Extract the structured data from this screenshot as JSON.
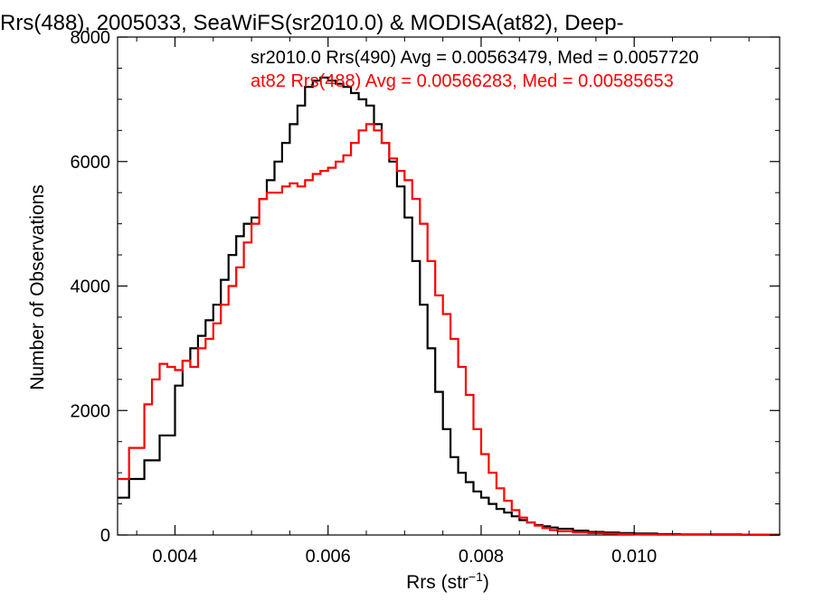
{
  "chart_data": {
    "type": "line",
    "title": "Rrs(488), 2005033, SeaWiFS(sr2010.0) & MODISA(at82), Deep-",
    "xlabel": "Rrs (str",
    "xlabel_sup": "−1",
    "xlabel_suffix": ")",
    "ylabel": "Number of Observations",
    "xlim": [
      0.00325,
      0.0119
    ],
    "ylim": [
      0,
      8000
    ],
    "xticks": [
      0.004,
      0.006,
      0.008,
      0.01
    ],
    "xtick_labels": [
      "0.004",
      "0.006",
      "0.008",
      "0.010"
    ],
    "yticks": [
      0,
      2000,
      4000,
      6000,
      8000
    ],
    "ytick_labels": [
      "0",
      "2000",
      "4000",
      "6000",
      "8000"
    ],
    "grid": false,
    "legend_position": "top-right",
    "series": [
      {
        "name": "sr2010.0 Rrs(490) Avg = 0.00563479, Med = 0.0057720",
        "color": "#000000",
        "x": [
          0.00325,
          0.0034,
          0.0036,
          0.0038,
          0.004,
          0.0041,
          0.0042,
          0.0043,
          0.0044,
          0.0045,
          0.0046,
          0.0047,
          0.0048,
          0.0049,
          0.005,
          0.0051,
          0.0052,
          0.0053,
          0.0054,
          0.0055,
          0.0056,
          0.0057,
          0.0058,
          0.0059,
          0.006,
          0.0061,
          0.0062,
          0.0063,
          0.0064,
          0.0065,
          0.0066,
          0.0067,
          0.0068,
          0.0069,
          0.007,
          0.0071,
          0.0072,
          0.0073,
          0.0074,
          0.0075,
          0.0076,
          0.0077,
          0.0078,
          0.0079,
          0.008,
          0.0081,
          0.0082,
          0.0083,
          0.0084,
          0.0085,
          0.0086,
          0.0087,
          0.0088,
          0.0089,
          0.009,
          0.0092,
          0.0094,
          0.0096,
          0.0098,
          0.01,
          0.0103,
          0.0106,
          0.011,
          0.0114,
          0.0119
        ],
        "values": [
          600,
          900,
          1200,
          1600,
          2400,
          2800,
          3000,
          3200,
          3450,
          3700,
          4100,
          4500,
          4800,
          5000,
          5100,
          5400,
          5700,
          6000,
          6300,
          6600,
          6900,
          7200,
          7300,
          7350,
          7300,
          7250,
          7200,
          7100,
          7000,
          6900,
          6600,
          6300,
          6000,
          5600,
          5100,
          4400,
          3700,
          3000,
          2300,
          1700,
          1250,
          1000,
          850,
          700,
          600,
          500,
          420,
          360,
          300,
          240,
          200,
          160,
          140,
          120,
          100,
          70,
          50,
          40,
          30,
          25,
          15,
          10,
          8,
          5,
          3
        ]
      },
      {
        "name": "at82 Rrs(488) Avg = 0.00566283, Med = 0.00585653",
        "color": "#ff0000",
        "x": [
          0.00325,
          0.0034,
          0.0036,
          0.0037,
          0.0038,
          0.0039,
          0.004,
          0.0041,
          0.0042,
          0.0043,
          0.0044,
          0.0045,
          0.0046,
          0.0047,
          0.0048,
          0.0049,
          0.005,
          0.0051,
          0.0052,
          0.0053,
          0.0054,
          0.0055,
          0.0056,
          0.0057,
          0.0058,
          0.0059,
          0.006,
          0.0061,
          0.0062,
          0.0063,
          0.0064,
          0.0065,
          0.0066,
          0.0067,
          0.0068,
          0.0069,
          0.007,
          0.0071,
          0.0072,
          0.0073,
          0.0074,
          0.0075,
          0.0076,
          0.0077,
          0.0078,
          0.0079,
          0.008,
          0.0081,
          0.0082,
          0.0083,
          0.0084,
          0.0085,
          0.0086,
          0.0087,
          0.0088,
          0.0089,
          0.009,
          0.0092,
          0.0094,
          0.0096,
          0.0098,
          0.01,
          0.0103,
          0.0106,
          0.011,
          0.0114,
          0.0119
        ],
        "values": [
          900,
          1400,
          2100,
          2500,
          2750,
          2700,
          2650,
          2800,
          2700,
          3000,
          3150,
          3400,
          3700,
          4000,
          4300,
          4700,
          5000,
          5400,
          5500,
          5500,
          5600,
          5650,
          5600,
          5700,
          5800,
          5850,
          5900,
          6000,
          6100,
          6300,
          6500,
          6600,
          6500,
          6300,
          6050,
          5850,
          5700,
          5400,
          5000,
          4400,
          3850,
          3550,
          3150,
          2700,
          2250,
          1700,
          1300,
          1000,
          750,
          550,
          400,
          280,
          200,
          150,
          110,
          80,
          60,
          40,
          30,
          22,
          15,
          10,
          6,
          4,
          3,
          2,
          1
        ]
      }
    ]
  }
}
